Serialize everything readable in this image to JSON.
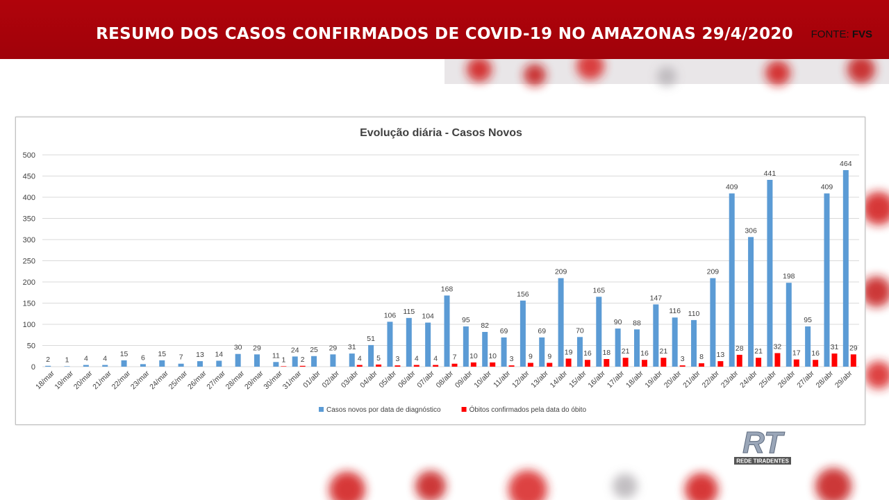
{
  "header": {
    "title": "RESUMO DOS CASOS CONFIRMADOS DE COVID-19 NO AMAZONAS 29/4/2020",
    "source_label": "FONTE:",
    "source": "FVS"
  },
  "logo": {
    "mark": "RT",
    "name": "REDE TIRADENTES"
  },
  "chart_data": {
    "type": "bar",
    "title": "Evolução diária - Casos Novos",
    "categories": [
      "18/mar",
      "19/mar",
      "20/mar",
      "21/mar",
      "22/mar",
      "23/mar",
      "24/mar",
      "25/mar",
      "26/mar",
      "27/mar",
      "28/mar",
      "29/mar",
      "30/mar",
      "31/mar",
      "01/abr",
      "02/abr",
      "03/abr",
      "04/abr",
      "05/abr",
      "06/abr",
      "07/abr",
      "08/abr",
      "09/abr",
      "10/abr",
      "11/abr",
      "12/abr",
      "13/abr",
      "14/abr",
      "15/abr",
      "16/abr",
      "17/abr",
      "18/abr",
      "19/abr",
      "20/abr",
      "21/abr",
      "22/abr",
      "23/abr",
      "24/abr",
      "25/abr",
      "26/abr",
      "27/abr",
      "28/abr",
      "29/abr"
    ],
    "series": [
      {
        "name": "Casos novos por data de diagnóstico",
        "color": "#5b9bd5",
        "values": [
          2,
          1,
          4,
          4,
          15,
          6,
          15,
          7,
          13,
          14,
          30,
          29,
          11,
          24,
          25,
          29,
          31,
          51,
          106,
          115,
          104,
          168,
          95,
          82,
          69,
          156,
          69,
          209,
          70,
          165,
          90,
          88,
          147,
          116,
          110,
          209,
          409,
          306,
          441,
          198,
          95,
          409,
          464
        ]
      },
      {
        "name": "Óbitos confirmados pela data do óbito",
        "color": "#ff0000",
        "values": [
          null,
          null,
          null,
          null,
          null,
          null,
          null,
          null,
          null,
          null,
          null,
          null,
          1,
          2,
          null,
          null,
          4,
          5,
          3,
          4,
          4,
          7,
          10,
          10,
          3,
          9,
          9,
          19,
          16,
          18,
          21,
          16,
          21,
          3,
          8,
          13,
          28,
          21,
          32,
          17,
          16,
          31,
          29
        ]
      }
    ],
    "ylim": [
      0,
      500
    ],
    "yticks": [
      0,
      50,
      100,
      150,
      200,
      250,
      300,
      350,
      400,
      450,
      500
    ],
    "grid": true,
    "legend": "bottom"
  }
}
